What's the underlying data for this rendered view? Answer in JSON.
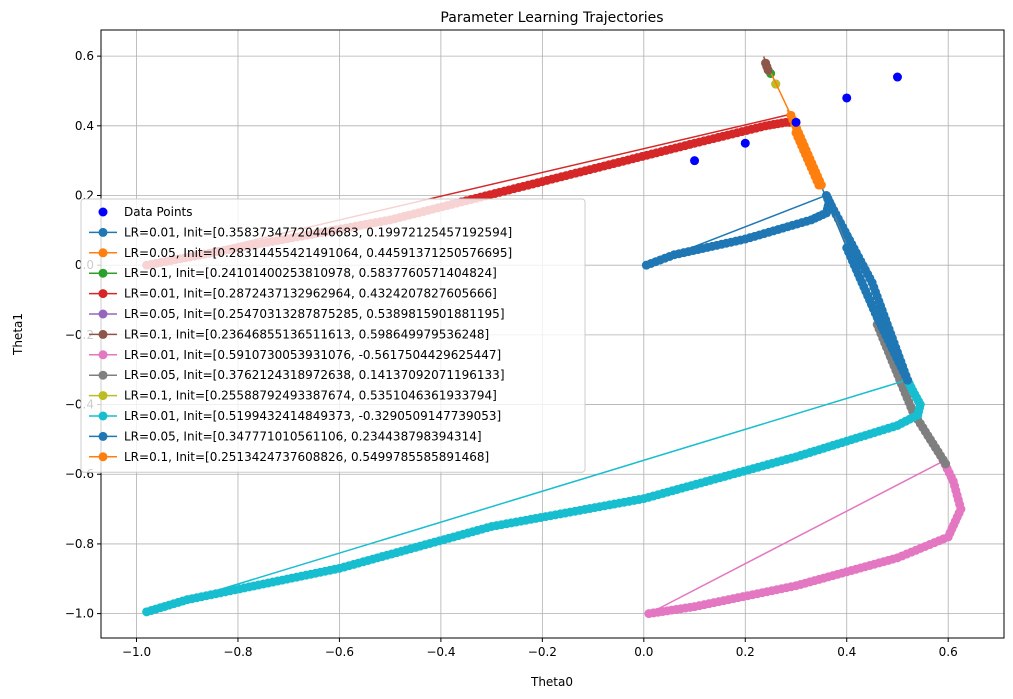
{
  "chart_data": {
    "type": "scatter",
    "title": "Parameter Learning Trajectories",
    "xlabel": "Theta0",
    "ylabel": "Theta1",
    "xlim": [
      -1.07,
      0.71
    ],
    "ylim": [
      -1.07,
      0.675
    ],
    "xticks": [
      -1.0,
      -0.8,
      -0.6,
      -0.4,
      -0.2,
      0.0,
      0.2,
      0.4,
      0.6
    ],
    "xtick_labels": [
      "−1.0",
      "−0.8",
      "−0.6",
      "−0.4",
      "−0.2",
      "0.0",
      "0.2",
      "0.4",
      "0.6"
    ],
    "yticks": [
      -1.0,
      -0.8,
      -0.6,
      -0.4,
      -0.2,
      0.0,
      0.2,
      0.4,
      0.6
    ],
    "ytick_labels": [
      "−1.0",
      "−0.8",
      "−0.6",
      "−0.4",
      "−0.2",
      "0.0",
      "0.2",
      "0.4",
      "0.6"
    ],
    "grid": true,
    "legend_position": "center-left",
    "data_points": {
      "name": "Data Points",
      "color": "#0000ff",
      "x": [
        0.1,
        0.2,
        0.3,
        0.4,
        0.5
      ],
      "y": [
        0.3,
        0.35,
        0.41,
        0.48,
        0.54
      ]
    },
    "series": [
      {
        "name": "LR=0.01, Init=[0.35837347720446683, 0.19972125457192594]",
        "color": "#1f77b4",
        "path": [
          [
            0.3584,
            0.1997
          ],
          [
            0.005,
            0.0
          ],
          [
            0.06,
            0.03
          ],
          [
            0.2,
            0.075
          ],
          [
            0.33,
            0.13
          ],
          [
            0.36,
            0.15
          ],
          [
            0.365,
            0.18
          ],
          [
            0.36,
            0.2
          ],
          [
            0.37,
            0.17
          ],
          [
            0.45,
            -0.05
          ],
          [
            0.52,
            -0.33
          ]
        ]
      },
      {
        "name": "LR=0.05, Init=[0.28314455421491064, 0.44591371250576695]",
        "color": "#ff7f0e",
        "path": [
          [
            0.2831,
            0.4459
          ],
          [
            0.3,
            0.38
          ],
          [
            0.33,
            0.28
          ],
          [
            0.345,
            0.23
          ]
        ]
      },
      {
        "name": "LR=0.1, Init=[0.24101400253810978, 0.5837760571404824]",
        "color": "#2ca02c",
        "path": [
          [
            0.241,
            0.5838
          ],
          [
            0.25,
            0.55
          ]
        ]
      },
      {
        "name": "LR=0.01, Init=[0.2872437132962964, 0.4324207827605666]",
        "color": "#d62728",
        "path": [
          [
            0.2872,
            0.4324
          ],
          [
            -0.98,
            0.0
          ],
          [
            -0.8,
            0.05
          ],
          [
            -0.5,
            0.13
          ],
          [
            -0.2,
            0.24
          ],
          [
            0.1,
            0.35
          ],
          [
            0.24,
            0.4
          ],
          [
            0.28,
            0.41
          ],
          [
            0.3,
            0.41
          ]
        ]
      },
      {
        "name": "LR=0.05, Init=[0.25470313287875285, 0.5389815901881195]",
        "color": "#9467bd",
        "path": [
          [
            0.2547,
            0.539
          ],
          [
            0.26,
            0.52
          ]
        ]
      },
      {
        "name": "LR=0.1, Init=[0.23646855136511613, 0.598649979536248]",
        "color": "#8c564b",
        "path": [
          [
            0.2365,
            0.5986
          ],
          [
            0.24,
            0.58
          ],
          [
            0.245,
            0.56
          ]
        ]
      },
      {
        "name": "LR=0.01, Init=[0.5910730053931076, -0.5617504429625447]",
        "color": "#e377c2",
        "path": [
          [
            0.5911,
            -0.5618
          ],
          [
            0.01,
            -1.0
          ],
          [
            0.1,
            -0.98
          ],
          [
            0.3,
            -0.92
          ],
          [
            0.5,
            -0.84
          ],
          [
            0.6,
            -0.78
          ],
          [
            0.625,
            -0.7
          ],
          [
            0.61,
            -0.62
          ],
          [
            0.59,
            -0.56
          ]
        ]
      },
      {
        "name": "LR=0.05, Init=[0.3762124318972638, 0.14137092071196133]",
        "color": "#7f7f7f",
        "path": [
          [
            0.3762,
            0.1414
          ],
          [
            0.46,
            -0.17
          ],
          [
            0.53,
            -0.42
          ],
          [
            0.595,
            -0.57
          ]
        ]
      },
      {
        "name": "LR=0.1, Init=[0.25588792493387674, 0.5351046361933794]",
        "color": "#bcbd22",
        "path": [
          [
            0.2559,
            0.5351
          ],
          [
            0.26,
            0.52
          ]
        ]
      },
      {
        "name": "LR=0.01, Init=[0.5199432414849373, -0.3290509147739053]",
        "color": "#17becf",
        "path": [
          [
            0.5199,
            -0.3291
          ],
          [
            -0.98,
            -0.995
          ],
          [
            -0.9,
            -0.96
          ],
          [
            -0.6,
            -0.87
          ],
          [
            -0.3,
            -0.75
          ],
          [
            0.0,
            -0.67
          ],
          [
            0.3,
            -0.55
          ],
          [
            0.5,
            -0.46
          ],
          [
            0.54,
            -0.43
          ],
          [
            0.545,
            -0.4
          ],
          [
            0.53,
            -0.36
          ],
          [
            0.52,
            -0.33
          ]
        ]
      },
      {
        "name": "LR=0.05, Init=[0.347771010561106, 0.234438798394314]",
        "color": "#1f77b4",
        "path": [
          [
            0.3478,
            0.2344
          ],
          [
            0.4,
            0.05
          ],
          [
            0.46,
            -0.15
          ],
          [
            0.52,
            -0.33
          ]
        ]
      },
      {
        "name": "LR=0.1, Init=[0.2513424737608826, 0.5499785585891468]",
        "color": "#ff7f0e",
        "path": [
          [
            0.2513,
            0.55
          ],
          [
            0.29,
            0.43
          ],
          [
            0.32,
            0.33
          ],
          [
            0.35,
            0.23
          ]
        ]
      }
    ]
  }
}
